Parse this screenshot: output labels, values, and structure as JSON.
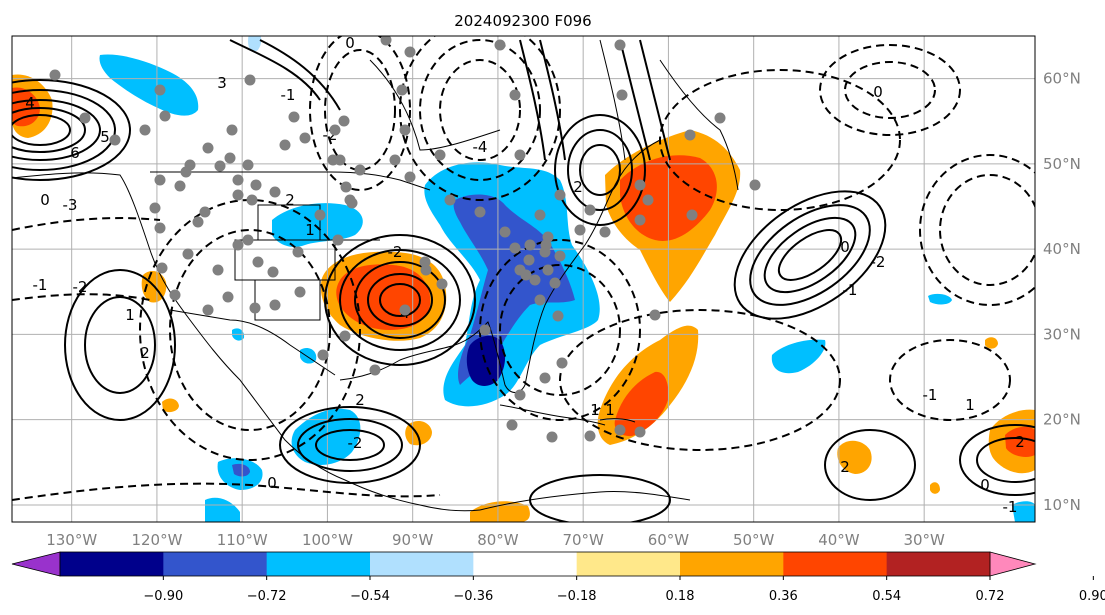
{
  "chart_data": {
    "type": "map",
    "title": "2024092300 F096",
    "lon_ticks": [
      "130°W",
      "120°W",
      "110°W",
      "100°W",
      "90°W",
      "80°W",
      "70°W",
      "60°W",
      "50°W",
      "40°W",
      "30°W"
    ],
    "lon_values": [
      -130,
      -120,
      -110,
      -100,
      -90,
      -80,
      -70,
      -60,
      -50,
      -40,
      -30
    ],
    "lat_ticks": [
      "60°N",
      "50°N",
      "40°N",
      "30°N",
      "20°N",
      "10°N"
    ],
    "lat_values": [
      60,
      50,
      40,
      30,
      20,
      10
    ],
    "lon_range": [
      -137,
      -17
    ],
    "lat_range": [
      8,
      65
    ],
    "grid": true,
    "colorbar": {
      "orientation": "horizontal",
      "extend": "both",
      "levels": [
        -0.9,
        -0.72,
        -0.54,
        -0.36,
        -0.18,
        0.18,
        0.36,
        0.54,
        0.72,
        0.9
      ],
      "tick_labels": [
        "−0.90",
        "−0.72",
        "−0.54",
        "−0.36",
        "−0.18",
        "0.18",
        "0.36",
        "0.54",
        "0.72",
        "0.90"
      ],
      "colors": [
        "#9932cc",
        "#00008b",
        "#3355cc",
        "#00bfff",
        "#b0e0fe",
        "#ffffff",
        "#ffe88a",
        "#ffa500",
        "#ff4500",
        "#b22222",
        "#ff88bb"
      ]
    },
    "filled_regions": [
      {
        "lon": -93,
        "lat": 34,
        "value": 0.72
      },
      {
        "lon": -93,
        "lat": 34,
        "value": 0.54
      },
      {
        "lon": -66,
        "lat": 44,
        "value": 0.72
      },
      {
        "lon": -64,
        "lat": 43,
        "value": 0.54
      },
      {
        "lon": -65,
        "lat": 21,
        "value": 0.72
      },
      {
        "lon": -64,
        "lat": 23,
        "value": 0.54
      },
      {
        "lon": -83,
        "lat": 24,
        "value": -0.9
      },
      {
        "lon": -82,
        "lat": 26,
        "value": -0.72
      },
      {
        "lon": -79,
        "lat": 38,
        "value": -0.54
      },
      {
        "lon": -80,
        "lat": 35,
        "value": -0.36
      },
      {
        "lon": -135,
        "lat": 55,
        "value": 0.72
      },
      {
        "lon": -99,
        "lat": 19,
        "value": -0.54
      },
      {
        "lon": -26,
        "lat": 19,
        "value": 0.54
      },
      {
        "lon": -39,
        "lat": 17,
        "value": 0.54
      }
    ],
    "contour_labels": [
      "4",
      "6",
      "5",
      "3",
      "0",
      "-1",
      "-2",
      "2",
      "1",
      "-3",
      "0",
      "-1",
      "-2",
      "1",
      "2",
      "-4",
      "0",
      "2",
      "4",
      "-2",
      "1",
      "-1",
      "2",
      "-2",
      "0",
      "1",
      "-1",
      "1",
      "2",
      "0",
      "-1",
      "2",
      "-2",
      "0"
    ]
  }
}
